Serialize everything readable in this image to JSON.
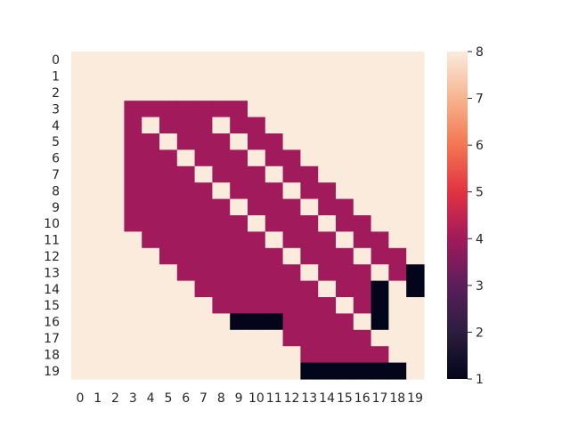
{
  "chart_data": {
    "type": "heatmap",
    "title": "",
    "xlabel": "",
    "ylabel": "",
    "x_ticks": [
      "0",
      "1",
      "2",
      "3",
      "4",
      "5",
      "6",
      "7",
      "8",
      "9",
      "10",
      "11",
      "12",
      "13",
      "14",
      "15",
      "16",
      "17",
      "18",
      "19"
    ],
    "y_ticks": [
      "0",
      "1",
      "2",
      "3",
      "4",
      "5",
      "6",
      "7",
      "8",
      "9",
      "10",
      "11",
      "12",
      "13",
      "14",
      "15",
      "16",
      "17",
      "18",
      "19"
    ],
    "zlim": [
      1,
      8
    ],
    "colorbar_ticks": [
      "1",
      "2",
      "3",
      "4",
      "5",
      "6",
      "7",
      "8"
    ],
    "colormap": "rocket",
    "grid": false,
    "legend": "colorbar-right",
    "values": [
      [
        8,
        8,
        8,
        8,
        8,
        8,
        8,
        8,
        8,
        8,
        8,
        8,
        8,
        8,
        8,
        8,
        8,
        8,
        8,
        8
      ],
      [
        8,
        8,
        8,
        8,
        8,
        8,
        8,
        8,
        8,
        8,
        8,
        8,
        8,
        8,
        8,
        8,
        8,
        8,
        8,
        8
      ],
      [
        8,
        8,
        8,
        8,
        8,
        8,
        8,
        8,
        8,
        8,
        8,
        8,
        8,
        8,
        8,
        8,
        8,
        8,
        8,
        8
      ],
      [
        8,
        8,
        8,
        4,
        4,
        4,
        4,
        4,
        4,
        4,
        8,
        8,
        8,
        8,
        8,
        8,
        8,
        8,
        8,
        8
      ],
      [
        8,
        8,
        8,
        4,
        8,
        4,
        4,
        4,
        8,
        4,
        4,
        8,
        8,
        8,
        8,
        8,
        8,
        8,
        8,
        8
      ],
      [
        8,
        8,
        8,
        4,
        4,
        8,
        4,
        4,
        4,
        8,
        4,
        4,
        8,
        8,
        8,
        8,
        8,
        8,
        8,
        8
      ],
      [
        8,
        8,
        8,
        4,
        4,
        4,
        8,
        4,
        4,
        4,
        8,
        4,
        4,
        8,
        8,
        8,
        8,
        8,
        8,
        8
      ],
      [
        8,
        8,
        8,
        4,
        4,
        4,
        4,
        8,
        4,
        4,
        4,
        8,
        4,
        4,
        8,
        8,
        8,
        8,
        8,
        8
      ],
      [
        8,
        8,
        8,
        4,
        4,
        4,
        4,
        4,
        8,
        4,
        4,
        4,
        8,
        4,
        4,
        8,
        8,
        8,
        8,
        8
      ],
      [
        8,
        8,
        8,
        4,
        4,
        4,
        4,
        4,
        4,
        8,
        4,
        4,
        4,
        8,
        4,
        4,
        8,
        8,
        8,
        8
      ],
      [
        8,
        8,
        8,
        4,
        4,
        4,
        4,
        4,
        4,
        4,
        8,
        4,
        4,
        4,
        8,
        4,
        4,
        8,
        8,
        8
      ],
      [
        8,
        8,
        8,
        8,
        4,
        4,
        4,
        4,
        4,
        4,
        4,
        8,
        4,
        4,
        4,
        8,
        4,
        4,
        8,
        8
      ],
      [
        8,
        8,
        8,
        8,
        8,
        4,
        4,
        4,
        4,
        4,
        4,
        4,
        8,
        4,
        4,
        4,
        8,
        4,
        4,
        8
      ],
      [
        8,
        8,
        8,
        8,
        8,
        8,
        4,
        4,
        4,
        4,
        4,
        4,
        4,
        8,
        4,
        4,
        4,
        8,
        4,
        1
      ],
      [
        8,
        8,
        8,
        8,
        8,
        8,
        8,
        4,
        4,
        4,
        4,
        4,
        4,
        4,
        8,
        4,
        4,
        1,
        8,
        1
      ],
      [
        8,
        8,
        8,
        8,
        8,
        8,
        8,
        8,
        4,
        4,
        4,
        4,
        4,
        4,
        4,
        8,
        4,
        1,
        8,
        8
      ],
      [
        8,
        8,
        8,
        8,
        8,
        8,
        8,
        8,
        8,
        1,
        1,
        1,
        4,
        4,
        4,
        4,
        8,
        1,
        8,
        8
      ],
      [
        8,
        8,
        8,
        8,
        8,
        8,
        8,
        8,
        8,
        8,
        8,
        8,
        4,
        4,
        4,
        4,
        4,
        8,
        8,
        8
      ],
      [
        8,
        8,
        8,
        8,
        8,
        8,
        8,
        8,
        8,
        8,
        8,
        8,
        8,
        4,
        4,
        4,
        4,
        4,
        8,
        8
      ],
      [
        8,
        8,
        8,
        8,
        8,
        8,
        8,
        8,
        8,
        8,
        8,
        8,
        8,
        1,
        1,
        1,
        1,
        1,
        1,
        8
      ]
    ]
  }
}
